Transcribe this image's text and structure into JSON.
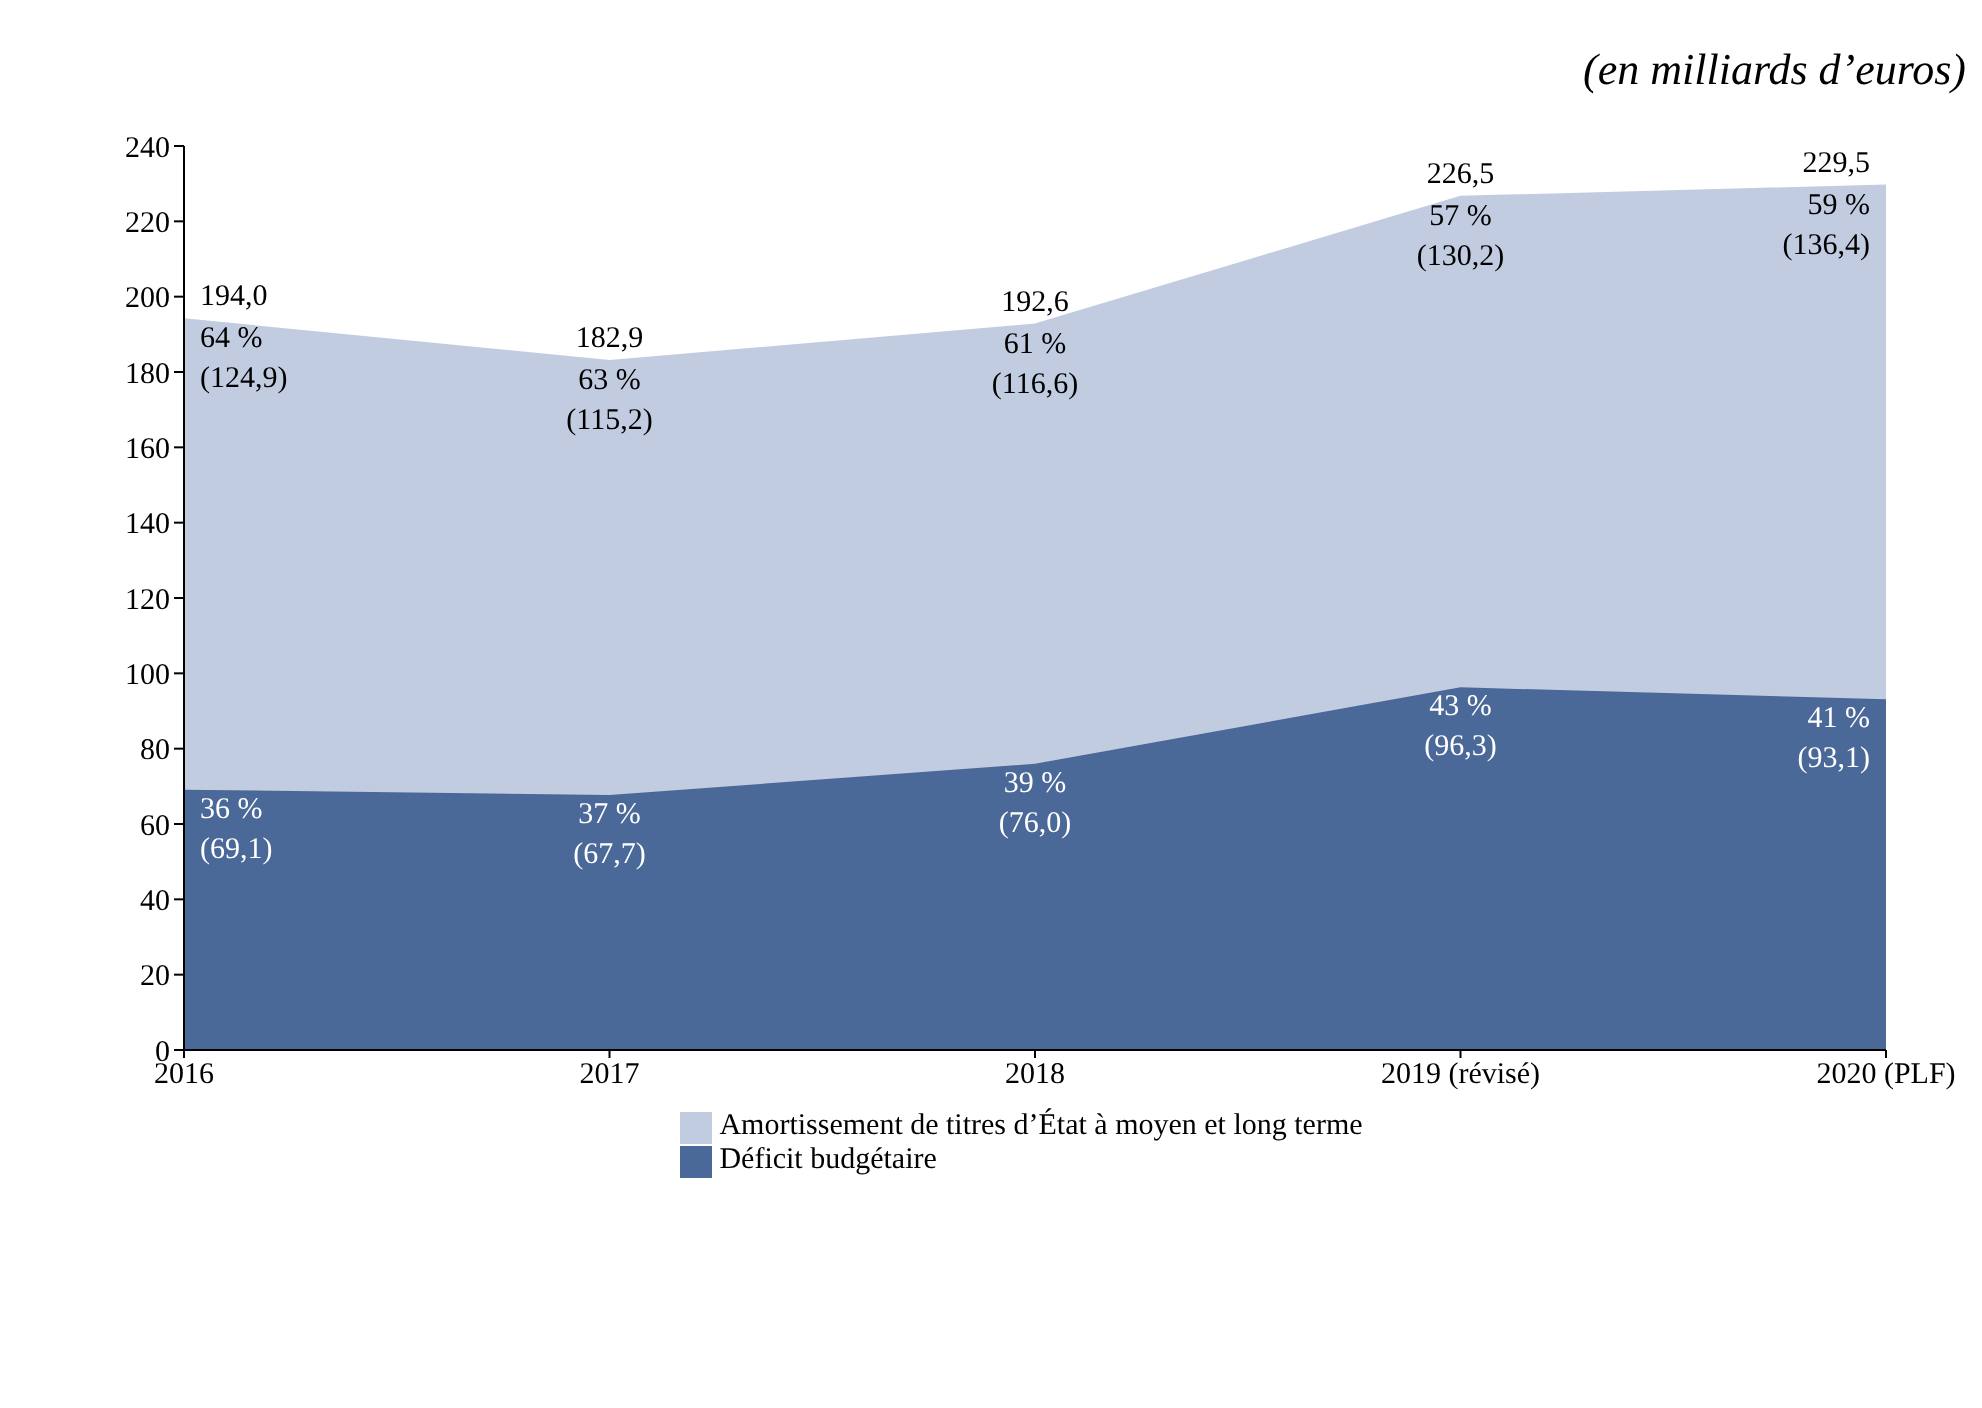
{
  "chart_data": {
    "type": "area",
    "stacked": true,
    "annotations": [
      "(en milliards d’euros)"
    ],
    "categories": [
      "2016",
      "2017",
      "2018",
      "2019 (révisé)",
      "2020 (PLF)"
    ],
    "series": [
      {
        "name": "Déficit budgétaire",
        "color": "#4a6898",
        "values": [
          69.1,
          67.7,
          76.0,
          96.3,
          93.1
        ],
        "value_labels": [
          "36 %\n(69,1)",
          "37 %\n(67,7)",
          "39 %\n(76,0)",
          "43 %\n(96,3)",
          "41 %\n(93,1)"
        ]
      },
      {
        "name": "Amortissement de titres d’État à moyen et long terme",
        "color": "#c2cce0",
        "values": [
          124.9,
          115.2,
          116.6,
          130.2,
          136.4
        ],
        "value_labels": [
          "64 %\n(124,9)",
          "63 %\n(115,2)",
          "61 %\n(116,6)",
          "57 %\n(130,2)",
          "59 %\n(136,4)"
        ]
      }
    ],
    "totals": [
      "194,0",
      "182,9",
      "192,6",
      "226,5",
      "229,5"
    ],
    "ylim": [
      0,
      240
    ],
    "yticks": [
      0,
      20,
      40,
      60,
      80,
      100,
      120,
      140,
      160,
      180,
      200,
      220,
      240
    ],
    "grid": false,
    "legend": "bottom"
  }
}
